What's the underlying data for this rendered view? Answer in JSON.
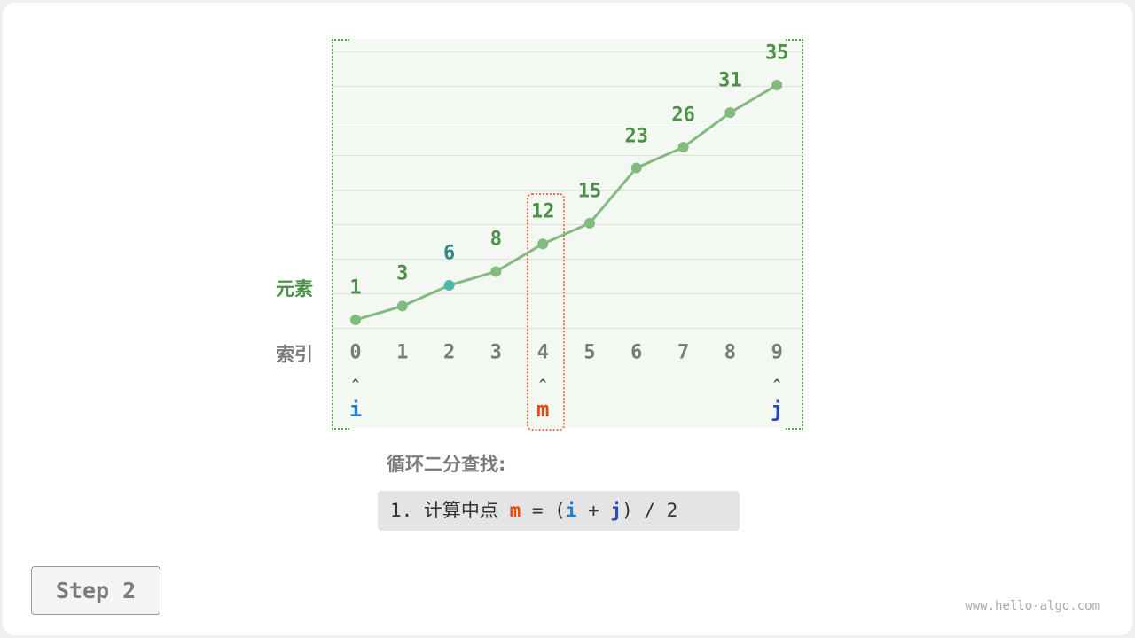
{
  "row_labels": {
    "elements": "元素",
    "index": "索引"
  },
  "array": [
    1,
    3,
    6,
    8,
    12,
    15,
    23,
    26,
    31,
    35
  ],
  "indices": [
    "0",
    "1",
    "2",
    "3",
    "4",
    "5",
    "6",
    "7",
    "8",
    "9"
  ],
  "highlight_index": 2,
  "pointers": [
    {
      "name": "i",
      "index": 0,
      "color": "#1f7fd0"
    },
    {
      "name": "m",
      "index": 4,
      "color": "#e8490f"
    },
    {
      "name": "j",
      "index": 9,
      "color": "#2a47c8"
    }
  ],
  "arrow_glyph": "^",
  "colors": {
    "line": "#82bb7d",
    "point": "#82bb7d",
    "highlight_point": "#4db8ac",
    "highlight_label": "#2f8a80",
    "value_label": "#4d9148",
    "mid_box": "#f07050"
  },
  "description": {
    "title": "循环二分查找:",
    "code_prefix": "1. 计算中点 ",
    "code_m": "m",
    "code_mid": " = (",
    "code_i": "i",
    "code_plus": " + ",
    "code_j": "j",
    "code_suffix": ") / 2"
  },
  "step_label": "Step 2",
  "watermark": "www.hello-algo.com"
}
